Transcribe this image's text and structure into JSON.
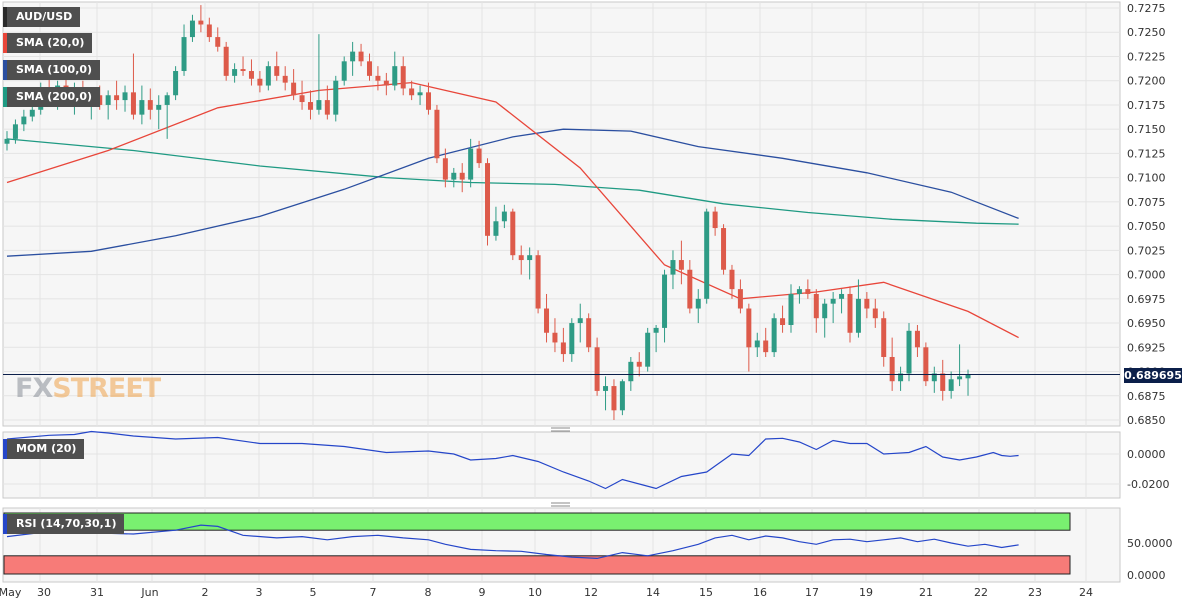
{
  "chart_data": {
    "type": "candlestick",
    "symbol": "AUD/USD",
    "last_price": "0.689695",
    "indicators": {
      "sma20_label": "SMA (20,0)",
      "sma100_label": "SMA (100,0)",
      "sma200_label": "SMA (200,0)",
      "mom_label": "MOM (20)",
      "rsi_label": "RSI (14,70,30,1)"
    },
    "colors": {
      "up": "#2e9b85",
      "down": "#dd5a4a",
      "sma20": "#e8463a",
      "sma100": "#2b4fa0",
      "sma200": "#1f9a83",
      "mom": "#2546c9",
      "rsi": "#2546c9",
      "rsi_overbought_band": "#79f070",
      "rsi_oversold_band": "#f77b78"
    },
    "price_axis": {
      "ticks": [
        "0.7275",
        "0.7250",
        "0.7225",
        "0.7200",
        "0.7175",
        "0.7150",
        "0.7125",
        "0.7100",
        "0.7075",
        "0.7050",
        "0.7025",
        "0.7000",
        "0.6975",
        "0.6950",
        "0.6925",
        "0.6900",
        "0.6875",
        "0.6850"
      ],
      "min": 0.685,
      "max": 0.7275
    },
    "mom_axis": {
      "ticks": [
        "0.0000",
        "-0.0200"
      ],
      "min": -0.029,
      "max": 0.014
    },
    "rsi_axis": {
      "ticks": [
        "50.0000",
        "0.0000"
      ],
      "min": 0,
      "max": 100,
      "overbought": 70,
      "oversold": 30
    },
    "x_labels": [
      "May",
      "30",
      "31",
      "Jun",
      "2",
      "3",
      "5",
      "7",
      "8",
      "9",
      "10",
      "12",
      "14",
      "15",
      "16",
      "17",
      "19",
      "21",
      "22",
      "23",
      "24"
    ],
    "candles": [
      [
        0.7135,
        0.7148,
        0.7128,
        0.714
      ],
      [
        0.714,
        0.716,
        0.7135,
        0.7155
      ],
      [
        0.7155,
        0.717,
        0.7148,
        0.7163
      ],
      [
        0.7163,
        0.718,
        0.7158,
        0.717
      ],
      [
        0.717,
        0.7198,
        0.7165,
        0.7192
      ],
      [
        0.7192,
        0.7205,
        0.718,
        0.7185
      ],
      [
        0.7185,
        0.72,
        0.717,
        0.7195
      ],
      [
        0.7195,
        0.7205,
        0.7178,
        0.718
      ],
      [
        0.718,
        0.7198,
        0.7165,
        0.719
      ],
      [
        0.719,
        0.72,
        0.7175,
        0.7178
      ],
      [
        0.7178,
        0.719,
        0.716,
        0.7185
      ],
      [
        0.7185,
        0.7195,
        0.717,
        0.7175
      ],
      [
        0.7175,
        0.719,
        0.716,
        0.7185
      ],
      [
        0.7185,
        0.72,
        0.717,
        0.718
      ],
      [
        0.718,
        0.7195,
        0.7168,
        0.7188
      ],
      [
        0.7188,
        0.7228,
        0.716,
        0.7165
      ],
      [
        0.7165,
        0.7195,
        0.7155,
        0.718
      ],
      [
        0.718,
        0.7192,
        0.716,
        0.717
      ],
      [
        0.717,
        0.7185,
        0.715,
        0.7175
      ],
      [
        0.7175,
        0.7188,
        0.714,
        0.7185
      ],
      [
        0.7185,
        0.7215,
        0.718,
        0.721
      ],
      [
        0.721,
        0.7258,
        0.7205,
        0.7245
      ],
      [
        0.7245,
        0.7268,
        0.724,
        0.7262
      ],
      [
        0.7262,
        0.7278,
        0.725,
        0.7258
      ],
      [
        0.7258,
        0.7265,
        0.724,
        0.7245
      ],
      [
        0.7245,
        0.7255,
        0.723,
        0.7235
      ],
      [
        0.7235,
        0.724,
        0.72,
        0.7205
      ],
      [
        0.7205,
        0.7218,
        0.7198,
        0.7212
      ],
      [
        0.7212,
        0.7225,
        0.7205,
        0.721
      ],
      [
        0.721,
        0.7222,
        0.7195,
        0.7202
      ],
      [
        0.7202,
        0.721,
        0.7188,
        0.7195
      ],
      [
        0.7195,
        0.722,
        0.719,
        0.7215
      ],
      [
        0.7215,
        0.723,
        0.72,
        0.7205
      ],
      [
        0.7205,
        0.7215,
        0.719,
        0.7198
      ],
      [
        0.7198,
        0.7212,
        0.718,
        0.7185
      ],
      [
        0.7185,
        0.72,
        0.717,
        0.7178
      ],
      [
        0.7178,
        0.719,
        0.716,
        0.717
      ],
      [
        0.717,
        0.7248,
        0.7165,
        0.718
      ],
      [
        0.718,
        0.7195,
        0.716,
        0.7165
      ],
      [
        0.7165,
        0.7205,
        0.7158,
        0.72
      ],
      [
        0.72,
        0.7225,
        0.7195,
        0.722
      ],
      [
        0.722,
        0.724,
        0.7205,
        0.723
      ],
      [
        0.723,
        0.7238,
        0.7215,
        0.722
      ],
      [
        0.722,
        0.7228,
        0.72,
        0.7205
      ],
      [
        0.7205,
        0.7215,
        0.719,
        0.72
      ],
      [
        0.72,
        0.7208,
        0.7185,
        0.7195
      ],
      [
        0.7195,
        0.723,
        0.719,
        0.7215
      ],
      [
        0.7215,
        0.7225,
        0.7185,
        0.7192
      ],
      [
        0.7192,
        0.72,
        0.718,
        0.7185
      ],
      [
        0.7185,
        0.7195,
        0.7175,
        0.7188
      ],
      [
        0.7188,
        0.7198,
        0.7165,
        0.717
      ],
      [
        0.717,
        0.7175,
        0.7115,
        0.712
      ],
      [
        0.712,
        0.713,
        0.709,
        0.7098
      ],
      [
        0.7098,
        0.711,
        0.709,
        0.7105
      ],
      [
        0.7105,
        0.7115,
        0.7085,
        0.7098
      ],
      [
        0.7098,
        0.714,
        0.709,
        0.713
      ],
      [
        0.713,
        0.7138,
        0.711,
        0.7115
      ],
      [
        0.7115,
        0.712,
        0.703,
        0.704
      ],
      [
        0.704,
        0.707,
        0.7035,
        0.7055
      ],
      [
        0.7055,
        0.7072,
        0.7048,
        0.7065
      ],
      [
        0.7065,
        0.7068,
        0.7015,
        0.702
      ],
      [
        0.702,
        0.703,
        0.7,
        0.7015
      ],
      [
        0.7015,
        0.7028,
        0.6995,
        0.702
      ],
      [
        0.702,
        0.7025,
        0.696,
        0.6965
      ],
      [
        0.6965,
        0.698,
        0.693,
        0.694
      ],
      [
        0.694,
        0.6955,
        0.692,
        0.693
      ],
      [
        0.693,
        0.6945,
        0.691,
        0.6918
      ],
      [
        0.6918,
        0.6955,
        0.691,
        0.695
      ],
      [
        0.695,
        0.697,
        0.693,
        0.6955
      ],
      [
        0.6955,
        0.696,
        0.692,
        0.6925
      ],
      [
        0.6925,
        0.6935,
        0.6875,
        0.688
      ],
      [
        0.688,
        0.6895,
        0.686,
        0.6885
      ],
      [
        0.6885,
        0.6892,
        0.685,
        0.686
      ],
      [
        0.686,
        0.6892,
        0.6855,
        0.689
      ],
      [
        0.689,
        0.6915,
        0.688,
        0.691
      ],
      [
        0.691,
        0.692,
        0.6895,
        0.6905
      ],
      [
        0.6905,
        0.6945,
        0.69,
        0.694
      ],
      [
        0.694,
        0.6948,
        0.692,
        0.6945
      ],
      [
        0.6945,
        0.7005,
        0.693,
        0.7
      ],
      [
        0.7,
        0.7025,
        0.6985,
        0.7015
      ],
      [
        0.7015,
        0.7035,
        0.699,
        0.7005
      ],
      [
        0.7005,
        0.7015,
        0.696,
        0.6965
      ],
      [
        0.6965,
        0.6985,
        0.695,
        0.6975
      ],
      [
        0.6975,
        0.7068,
        0.697,
        0.7065
      ],
      [
        0.7065,
        0.707,
        0.704,
        0.7048
      ],
      [
        0.7048,
        0.7052,
        0.7,
        0.7005
      ],
      [
        0.7005,
        0.701,
        0.6975,
        0.6985
      ],
      [
        0.6985,
        0.6995,
        0.696,
        0.6965
      ],
      [
        0.6965,
        0.697,
        0.69,
        0.6925
      ],
      [
        0.6925,
        0.694,
        0.6915,
        0.6932
      ],
      [
        0.6932,
        0.6945,
        0.6915,
        0.692
      ],
      [
        0.692,
        0.696,
        0.6915,
        0.6955
      ],
      [
        0.6955,
        0.6968,
        0.694,
        0.6948
      ],
      [
        0.6948,
        0.699,
        0.694,
        0.698
      ],
      [
        0.698,
        0.6988,
        0.697,
        0.6985
      ],
      [
        0.6985,
        0.6995,
        0.6975,
        0.698
      ],
      [
        0.698,
        0.6985,
        0.694,
        0.6955
      ],
      [
        0.6955,
        0.6975,
        0.6935,
        0.697
      ],
      [
        0.697,
        0.6982,
        0.695,
        0.6975
      ],
      [
        0.6975,
        0.6985,
        0.696,
        0.698
      ],
      [
        0.698,
        0.6988,
        0.693,
        0.694
      ],
      [
        0.694,
        0.6995,
        0.6935,
        0.6975
      ],
      [
        0.6975,
        0.6982,
        0.6955,
        0.6965
      ],
      [
        0.6965,
        0.6975,
        0.6945,
        0.6955
      ],
      [
        0.6955,
        0.6962,
        0.6905,
        0.6915
      ],
      [
        0.6915,
        0.6935,
        0.688,
        0.689
      ],
      [
        0.689,
        0.6905,
        0.688,
        0.6898
      ],
      [
        0.6898,
        0.695,
        0.689,
        0.6942
      ],
      [
        0.6942,
        0.6948,
        0.6915,
        0.6925
      ],
      [
        0.6925,
        0.693,
        0.6885,
        0.689
      ],
      [
        0.689,
        0.6905,
        0.6878,
        0.6898
      ],
      [
        0.6898,
        0.6912,
        0.687,
        0.688
      ],
      [
        0.688,
        0.69,
        0.6872,
        0.6892
      ],
      [
        0.6892,
        0.6928,
        0.6885,
        0.6895
      ],
      [
        0.6893,
        0.6902,
        0.6875,
        0.6897
      ]
    ],
    "sma20": [
      [
        0,
        0.7095
      ],
      [
        12,
        0.7128
      ],
      [
        25,
        0.7172
      ],
      [
        37,
        0.719
      ],
      [
        48,
        0.7198
      ],
      [
        58,
        0.7178
      ],
      [
        68,
        0.711
      ],
      [
        78,
        0.701
      ],
      [
        87,
        0.6975
      ],
      [
        96,
        0.6982
      ],
      [
        104,
        0.6992
      ],
      [
        114,
        0.6962
      ],
      [
        120,
        0.6935
      ]
    ],
    "sma100": [
      [
        0,
        0.7019
      ],
      [
        10,
        0.7024
      ],
      [
        20,
        0.704
      ],
      [
        30,
        0.706
      ],
      [
        40,
        0.7088
      ],
      [
        50,
        0.712
      ],
      [
        60,
        0.7142
      ],
      [
        66,
        0.715
      ],
      [
        74,
        0.7148
      ],
      [
        82,
        0.7132
      ],
      [
        92,
        0.712
      ],
      [
        102,
        0.7105
      ],
      [
        112,
        0.7085
      ],
      [
        120,
        0.7058
      ]
    ],
    "sma200": [
      [
        0,
        0.714
      ],
      [
        15,
        0.7128
      ],
      [
        30,
        0.7112
      ],
      [
        45,
        0.71
      ],
      [
        55,
        0.7095
      ],
      [
        65,
        0.7093
      ],
      [
        75,
        0.7087
      ],
      [
        85,
        0.7073
      ],
      [
        95,
        0.7064
      ],
      [
        105,
        0.7057
      ],
      [
        115,
        0.7053
      ],
      [
        120,
        0.7052
      ]
    ],
    "mom": [
      [
        0,
        0.01
      ],
      [
        5,
        0.0125
      ],
      [
        8,
        0.013
      ],
      [
        10,
        0.015
      ],
      [
        12,
        0.014
      ],
      [
        15,
        0.012
      ],
      [
        20,
        0.01
      ],
      [
        25,
        0.011
      ],
      [
        30,
        0.007
      ],
      [
        35,
        0.007
      ],
      [
        40,
        0.005
      ],
      [
        45,
        0.001
      ],
      [
        50,
        0.002
      ],
      [
        53,
        0.0
      ],
      [
        55,
        -0.004
      ],
      [
        58,
        -0.003
      ],
      [
        60,
        -0.001
      ],
      [
        63,
        -0.005
      ],
      [
        66,
        -0.012
      ],
      [
        69,
        -0.018
      ],
      [
        71,
        -0.023
      ],
      [
        73,
        -0.017
      ],
      [
        75,
        -0.02
      ],
      [
        77,
        -0.023
      ],
      [
        80,
        -0.015
      ],
      [
        83,
        -0.012
      ],
      [
        84,
        -0.008
      ],
      [
        86,
        0.0
      ],
      [
        88,
        -0.001
      ],
      [
        90,
        0.01
      ],
      [
        92,
        0.0105
      ],
      [
        94,
        0.008
      ],
      [
        96,
        0.003
      ],
      [
        98,
        0.009
      ],
      [
        100,
        0.007
      ],
      [
        102,
        0.007
      ],
      [
        104,
        0.0
      ],
      [
        107,
        0.001
      ],
      [
        109,
        0.005
      ],
      [
        111,
        -0.002
      ],
      [
        113,
        -0.004
      ],
      [
        115,
        -0.002
      ],
      [
        117,
        0.001
      ],
      [
        118,
        -0.001
      ],
      [
        119,
        -0.0015
      ],
      [
        120,
        -0.001
      ]
    ],
    "rsi": [
      [
        0,
        60
      ],
      [
        5,
        68
      ],
      [
        10,
        66
      ],
      [
        15,
        64
      ],
      [
        20,
        70
      ],
      [
        23,
        78
      ],
      [
        25,
        76
      ],
      [
        28,
        62
      ],
      [
        32,
        58
      ],
      [
        35,
        60
      ],
      [
        38,
        55
      ],
      [
        41,
        60
      ],
      [
        44,
        62
      ],
      [
        47,
        58
      ],
      [
        50,
        55
      ],
      [
        52,
        48
      ],
      [
        55,
        40
      ],
      [
        58,
        38
      ],
      [
        61,
        37
      ],
      [
        64,
        32
      ],
      [
        67,
        28
      ],
      [
        70,
        26
      ],
      [
        73,
        35
      ],
      [
        76,
        30
      ],
      [
        79,
        38
      ],
      [
        82,
        48
      ],
      [
        84,
        58
      ],
      [
        86,
        62
      ],
      [
        88,
        55
      ],
      [
        90,
        61
      ],
      [
        92,
        58
      ],
      [
        94,
        52
      ],
      [
        96,
        48
      ],
      [
        98,
        55
      ],
      [
        100,
        56
      ],
      [
        102,
        52
      ],
      [
        104,
        55
      ],
      [
        106,
        58
      ],
      [
        108,
        52
      ],
      [
        110,
        56
      ],
      [
        112,
        50
      ],
      [
        114,
        45
      ],
      [
        116,
        48
      ],
      [
        118,
        43
      ],
      [
        120,
        47
      ]
    ]
  }
}
